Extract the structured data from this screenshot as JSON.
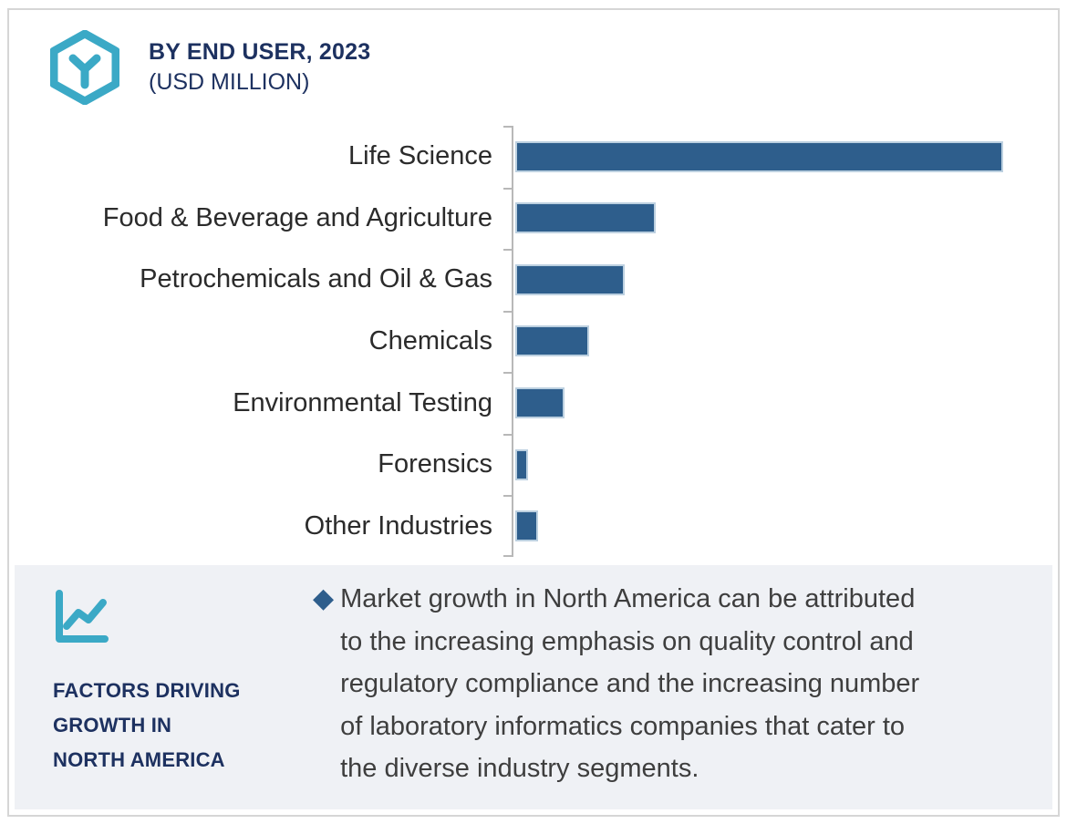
{
  "header": {
    "title_line1": "BY END USER, 2023",
    "title_line2": "(USD MILLION)"
  },
  "chart_data": {
    "type": "bar",
    "orientation": "horizontal",
    "title": "BY END USER, 2023 (USD MILLION)",
    "categories": [
      "Life Science",
      "Food & Beverage and Agriculture",
      "Petrochemicals and Oil & Gas",
      "Chemicals",
      "Environmental Testing",
      "Forensics",
      "Other Industries"
    ],
    "values": [
      100,
      28.8,
      22.4,
      15.1,
      10.1,
      2.6,
      4.7
    ],
    "value_scale_note": "no numeric axis or data labels shown; values estimated from bar lengths, Life Science = 100",
    "value_labels_shown": false,
    "grid": false,
    "legend": false,
    "bar_color": "#2e5e8c",
    "axis_color": "#b8b8b8"
  },
  "factors_panel": {
    "heading_lines": [
      "FACTORS DRIVING",
      "GROWTH IN",
      "NORTH AMERICA"
    ],
    "bullet_glyph": "◆",
    "bullet_lines": [
      "Market growth in North America can be attributed",
      "to the increasing emphasis on quality control and",
      "regulatory compliance and the increasing number",
      "of laboratory informatics companies that cater to",
      "the diverse industry segments."
    ]
  },
  "icons": {
    "brand": "hexagon-y-logo-icon",
    "panel": "line-chart-icon"
  },
  "colors": {
    "accent_teal": "#3ba9c6",
    "navy": "#1d3160",
    "bar_blue": "#2e5e8c",
    "panel_bg": "#eff1f5",
    "frame_border": "#d6d6d6",
    "body_text": "#3e3e3e",
    "label_text": "#2b2b2b"
  }
}
